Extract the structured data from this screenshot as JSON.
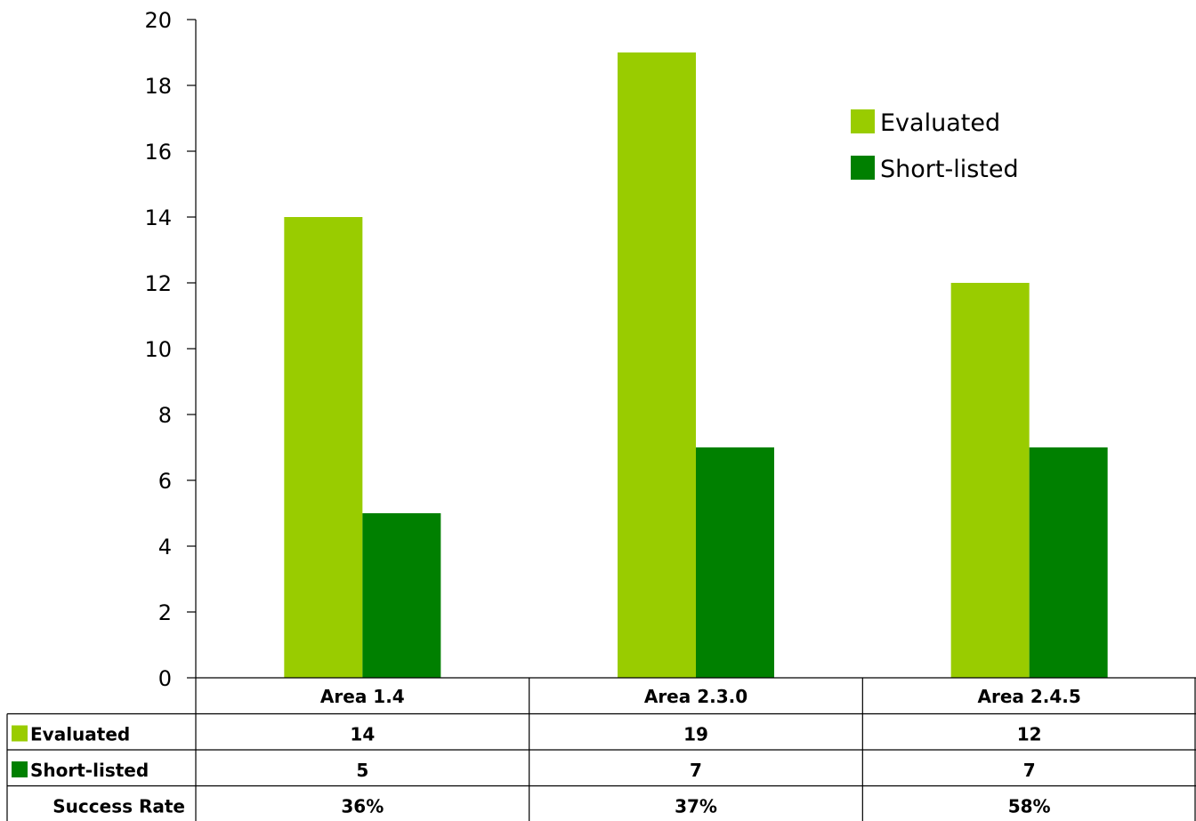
{
  "chart_data": {
    "type": "bar",
    "categories": [
      "Area 1.4",
      "Area 2.3.0",
      "Area 2.4.5"
    ],
    "series": [
      {
        "name": "Evaluated",
        "values": [
          14,
          19,
          12
        ],
        "color": "#99CC00"
      },
      {
        "name": "Short-listed",
        "values": [
          5,
          7,
          7
        ],
        "color": "#008000"
      }
    ],
    "ylim": [
      0,
      20
    ],
    "yticks": [
      0,
      2,
      4,
      6,
      8,
      10,
      12,
      14,
      16,
      18,
      20
    ],
    "grid": false,
    "legend": "top-right",
    "data_table": {
      "rows": [
        {
          "label": "Evaluated",
          "values": [
            "14",
            "19",
            "12"
          ]
        },
        {
          "label": "Short-listed",
          "values": [
            "5",
            "7",
            "7"
          ]
        },
        {
          "label": "Success Rate",
          "values": [
            "36%",
            "37%",
            "58%"
          ]
        }
      ]
    }
  }
}
